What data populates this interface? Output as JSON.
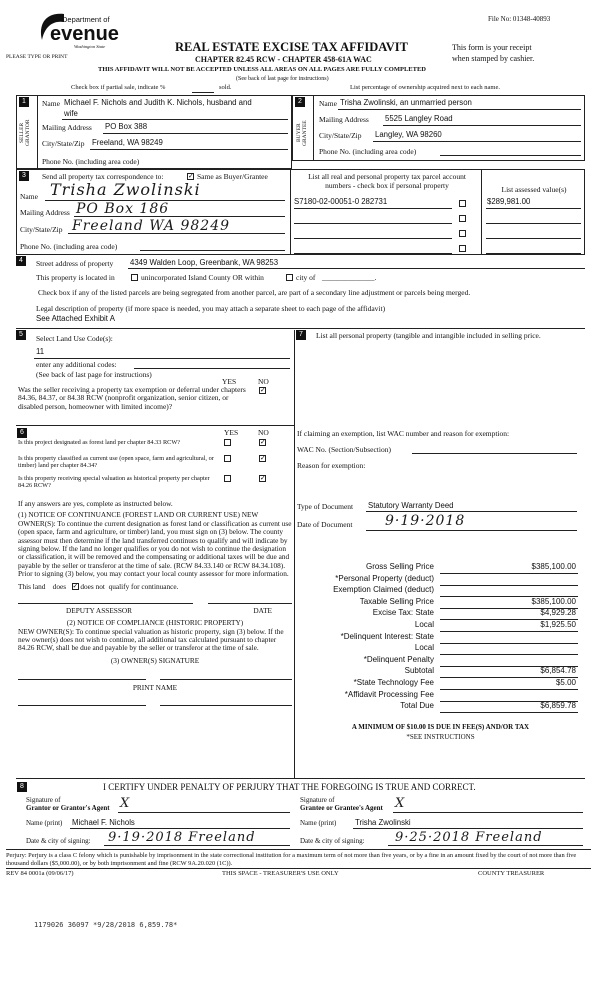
{
  "header": {
    "file_no": "File No: 01348-40893",
    "logo_dept": "Department of",
    "logo_name": "evenue",
    "logo_state": "Washington State",
    "please": "PLEASE TYPE OR PRINT",
    "title": "REAL ESTATE EXCISE TAX AFFIDAVIT",
    "chapter": "CHAPTER 82.45 RCW - CHAPTER 458-61A WAC",
    "receipt1": "This form is your receipt",
    "receipt2": "when stamped by cashier.",
    "warning": "THIS AFFIDAVIT WILL NOT BE ACCEPTED UNLESS ALL AREAS ON ALL PAGES ARE FULLY COMPLETED",
    "see_back": "(See back of last page for instructions)",
    "partial": "Check box if partial sale, indicate %",
    "sold": "sold.",
    "ownership": "List percentage of ownership acquired next to each name."
  },
  "seller": {
    "num": "1",
    "side": "SELLER GRANTOR",
    "name_label": "Name",
    "name": "Michael F. Nichols and Judith K. Nichols, husband and",
    "name2": "wife",
    "mail_label": "Mailing Address",
    "mail": "PO Box 388",
    "city_label": "City/State/Zip",
    "city": "Freeland, WA 98249",
    "phone_label": "Phone No. (including area code)"
  },
  "buyer": {
    "num": "2",
    "side": "BUYER GRANTEE",
    "name_label": "Name",
    "name": "Trisha Zwolinski, an unmarried person",
    "mail_label": "Mailing Address",
    "mail": "5525 Langley Road",
    "city_label": "City/State/Zip",
    "city": "Langley, WA 98260",
    "phone_label": "Phone No. (including area code)"
  },
  "correspondence": {
    "num": "3",
    "label": "Send all property tax correspondence to:",
    "same_checked": true,
    "same_label": "Same as Buyer/Grantee",
    "name_label": "Name",
    "name": "Trisha Zwolinski",
    "mail_label": "Mailing Address",
    "mail": "PO Box 186",
    "city_label": "City/State/Zip",
    "city": "Freeland WA 98249",
    "phone_label": "Phone No. (including area code)"
  },
  "parcels": {
    "header1": "List all real and personal property tax parcel account",
    "header2": "numbers - check box if personal property",
    "assessed_header": "List assessed value(s)",
    "rows": [
      {
        "parcel": "S7180-02-00051-0  282731",
        "personal": false,
        "assessed": "$289,981.00"
      },
      {
        "parcel": "",
        "personal": false,
        "assessed": ""
      },
      {
        "parcel": "",
        "personal": false,
        "assessed": ""
      },
      {
        "parcel": "",
        "personal": false,
        "assessed": ""
      }
    ]
  },
  "property": {
    "num": "4",
    "street_label": "Street address of property",
    "street": "4349 Walden Loop, Greenbank, WA 98253",
    "located_a": "This property is located in",
    "located_b": "unincorporated Island County OR within",
    "located_c": "city of",
    "located_d": "______________.",
    "segregated": "Check box if any of the listed parcels are being segregated from another parcel, are part of a secondary line adjustment or parcels being merged.",
    "legal_label": "Legal description of property (if more space is needed, you may attach a separate sheet to each page of the affidavit)",
    "legal": "See Attached Exhibit A"
  },
  "land_use": {
    "num": "5",
    "label": "Select Land Use Code(s):",
    "code": "11",
    "additional": "enter any additional codes:",
    "see_back": "(See back of last page for instructions)",
    "yes": "YES",
    "no": "NO",
    "exemption_q": "Was the seller receiving a property tax exemption or deferral under chapters 84.36, 84.37, or 84.38 RCW (nonprofit organization, senior citizen, or disabled person, homeowner with limited income)?",
    "exemption_answer": "NO"
  },
  "personal_property": {
    "num": "7",
    "label": "List all personal property (tangible and intangible included in selling price."
  },
  "section6": {
    "num": "6",
    "yes": "YES",
    "no": "NO",
    "questions": [
      {
        "q": "Is this project designated as forest land per chapter 84.33 RCW?",
        "answer": "NO"
      },
      {
        "q": "Is this property classified as current use (open space, farm and agricultural, or timber) land per chapter 84.34?",
        "answer": "NO"
      },
      {
        "q": "Is this property receiving special valuation as historical property per chapter 84.26 RCW?",
        "answer": "NO"
      }
    ],
    "if_yes": "If any answers are yes, complete as instructed below.",
    "notice1": "(1) NOTICE OF CONTINUANCE (FOREST LAND OR CURRENT USE) NEW OWNER(S): To continue the current designation as forest land or classification as current use (open space, farm and agriculture, or timber) land, you must sign on (3) below. The county assessor must then determine if the land transferred continues to qualify and will indicate by signing below. If the land no longer qualifies or you do not wish to continue the designation or classification, it will be removed and the compensating or additional taxes will be due and payable by the seller or transferor at the time of sale. (RCW 84.33.140 or RCW 84.34.108). Prior to signing (3) below, you may contact your local county assessor for more information.",
    "this_land": "This land",
    "does": "does",
    "does_not": "does not",
    "qualify": "qualify for continuance.",
    "does_not_checked": true,
    "deputy": "DEPUTY ASSESSOR",
    "date": "DATE",
    "notice2_title": "(2) NOTICE OF COMPLIANCE (HISTORIC PROPERTY)",
    "notice2": "NEW OWNER(S): To continue special valuation as historic property, sign (3) below. If the new owner(s) does not wish to continue, all additional tax calculated pursuant to chapter 84.26 RCW, shall be due and payable by the seller or transferor at the time of sale.",
    "owner_sig": "(3) OWNER(S) SIGNATURE",
    "print_name": "PRINT NAME"
  },
  "exemption": {
    "label": "If claiming an exemption, list WAC number and reason for exemption:",
    "wac_label": "WAC No. (Section/Subsection)",
    "reason_label": "Reason for exemption:",
    "doc_type_label": "Type of Document",
    "doc_type": "Statutory Warranty Deed",
    "doc_date_label": "Date of Document",
    "doc_date": "9·19·2018"
  },
  "totals": [
    {
      "label": "Gross Selling Price",
      "value": "$385,100.00"
    },
    {
      "label": "*Personal Property (deduct)",
      "value": ""
    },
    {
      "label": "Exemption Claimed (deduct)",
      "value": ""
    },
    {
      "label": "Taxable Selling Price",
      "value": "$385,100.00"
    },
    {
      "label": "Excise Tax:  State",
      "value": "$4,929.28"
    },
    {
      "label": "Local",
      "value": "$1,925.50"
    },
    {
      "label": "*Delinquent Interest:  State",
      "value": ""
    },
    {
      "label": "Local",
      "value": ""
    },
    {
      "label": "*Delinquent Penalty",
      "value": ""
    },
    {
      "label": "Subtotal",
      "value": "$6,854.78"
    },
    {
      "label": "*State Technology Fee",
      "value": "$5.00"
    },
    {
      "label": "*Affidavit Processing Fee",
      "value": ""
    },
    {
      "label": "Total Due",
      "value": "$6,859.78"
    }
  ],
  "minimum": "A MINIMUM OF $10.00 IS DUE IN FEE(S) AND/OR TAX",
  "see_instructions": "*SEE INSTRUCTIONS",
  "certify": {
    "num": "8",
    "text": "I CERTIFY UNDER PENALTY OF PERJURY THAT THE FOREGOING IS TRUE AND CORRECT.",
    "sig_of": "Signature of",
    "grantor_agent": "Grantor or Grantor's Agent",
    "grantee_agent": "Grantee or Grantee's Agent",
    "name_print": "Name (print)",
    "grantor_name": "Michael F. Nichols",
    "grantee_name": "Trisha Zwolinski",
    "date_city": "Date & city of signing:",
    "grantor_date": "9·19·2018  Freeland",
    "grantee_date": "9·25·2018 Freeland"
  },
  "footer": {
    "perjury": "Perjury: Perjury is a class C felony which is punishable by imprisonment in the state correctional institution for a maximum term of not more than five years, or by a fine in an amount fixed by the court of not more than five thousand dollars ($5,000.00), or by both imprisonment and fine (RCW 9A.20.020 (1C)).",
    "rev": "REV 84 0001a (09/06/17)",
    "treasurer_space": "THIS SPACE - TREASURER'S USE ONLY",
    "county_treasurer": "COUNTY TREASURER",
    "stamp": "1179026 36097 *9/28/2018 6,859.78*"
  }
}
